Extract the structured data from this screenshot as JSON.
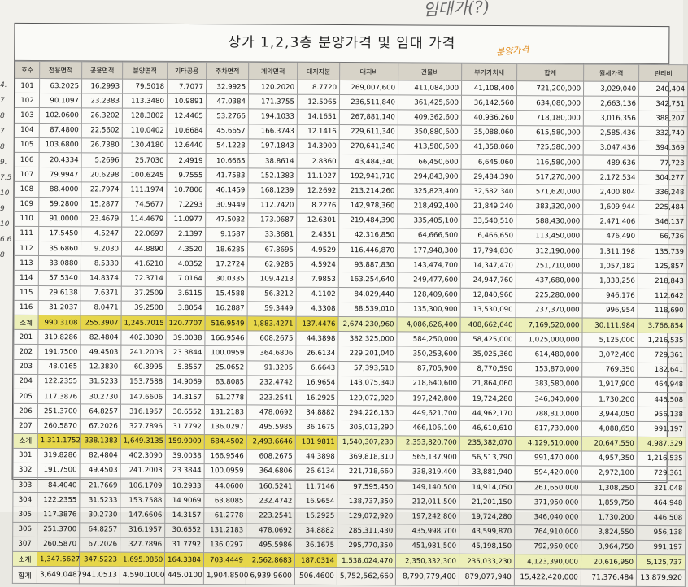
{
  "page_title": "상가 1,2,3층 분양가격 및 임대 가격",
  "header_note": "임대가(?)",
  "orange_note": "분양가격",
  "margin_notes": [
    "4.",
    "7",
    "8",
    "7",
    "8",
    "9.",
    "7.5",
    "10",
    "9",
    "10",
    "6.6",
    "8"
  ],
  "columns": [
    "호수",
    "전용면적",
    "공용면적",
    "분양면적",
    "기타공용",
    "주차면적",
    "계약면적",
    "대지지분",
    "대지비",
    "건물비",
    "부가가치세",
    "합계",
    "월세가격",
    "관리비"
  ],
  "rows": [
    [
      "101",
      "63.2025",
      "16.2993",
      "79.5018",
      "7.7077",
      "32.9925",
      "120.2020",
      "8.7720",
      "269,007,600",
      "411,084,000",
      "41,108,400",
      "721,200,000",
      "3,029,040",
      "240,404"
    ],
    [
      "102",
      "90.1097",
      "23.2383",
      "113.3480",
      "10.9891",
      "47.0384",
      "171.3755",
      "12.5065",
      "236,511,840",
      "361,425,600",
      "36,142,560",
      "634,080,000",
      "2,663,136",
      "342,751"
    ],
    [
      "103",
      "102.0600",
      "26.3202",
      "128.3802",
      "12.4465",
      "53.2766",
      "194.1033",
      "14.1651",
      "267,881,140",
      "409,362,600",
      "40,936,260",
      "718,180,000",
      "3,016,356",
      "388,207"
    ],
    [
      "104",
      "87.4800",
      "22.5602",
      "110.0402",
      "10.6684",
      "45.6657",
      "166.3743",
      "12.1416",
      "229,611,340",
      "350,880,600",
      "35,088,060",
      "615,580,000",
      "2,585,436",
      "332,749"
    ],
    [
      "105",
      "103.6800",
      "26.7380",
      "130.4180",
      "12.6440",
      "54.1223",
      "197.1843",
      "14.3900",
      "270,641,340",
      "413,580,600",
      "41,358,060",
      "725,580,000",
      "3,047,436",
      "394,369"
    ],
    [
      "106",
      "20.4334",
      "5.2696",
      "25.7030",
      "2.4919",
      "10.6665",
      "38.8614",
      "2.8360",
      "43,484,340",
      "66,450,600",
      "6,645,060",
      "116,580,000",
      "489,636",
      "77,723"
    ],
    [
      "107",
      "79.9947",
      "20.6298",
      "100.6245",
      "9.7555",
      "41.7583",
      "152.1383",
      "11.1027",
      "192,941,710",
      "294,843,900",
      "29,484,390",
      "517,270,000",
      "2,172,534",
      "304,277"
    ],
    [
      "108",
      "88.4000",
      "22.7974",
      "111.1974",
      "10.7806",
      "46.1459",
      "168.1239",
      "12.2692",
      "213,214,260",
      "325,823,400",
      "32,582,340",
      "571,620,000",
      "2,400,804",
      "336,248"
    ],
    [
      "109",
      "59.2800",
      "15.2877",
      "74.5677",
      "7.2293",
      "30.9449",
      "112.7420",
      "8.2276",
      "142,978,360",
      "218,492,400",
      "21,849,240",
      "383,320,000",
      "1,609,944",
      "225,484"
    ],
    [
      "110",
      "91.0000",
      "23.4679",
      "114.4679",
      "11.0977",
      "47.5032",
      "173.0687",
      "12.6301",
      "219,484,390",
      "335,405,100",
      "33,540,510",
      "588,430,000",
      "2,471,406",
      "346,137"
    ],
    [
      "111",
      "17.5450",
      "4.5247",
      "22.0697",
      "2.1397",
      "9.1587",
      "33.3681",
      "2.4351",
      "42,316,850",
      "64,666,500",
      "6,466,650",
      "113,450,000",
      "476,490",
      "66,736"
    ],
    [
      "112",
      "35.6860",
      "9.2030",
      "44.8890",
      "4.3520",
      "18.6285",
      "67.8695",
      "4.9529",
      "116,446,870",
      "177,948,300",
      "17,794,830",
      "312,190,000",
      "1,311,198",
      "135,739"
    ],
    [
      "113",
      "33.0880",
      "8.5330",
      "41.6210",
      "4.0352",
      "17.2724",
      "62.9285",
      "4.5924",
      "93,887,830",
      "143,474,700",
      "14,347,470",
      "251,710,000",
      "1,057,182",
      "125,857"
    ],
    [
      "114",
      "57.5340",
      "14.8374",
      "72.3714",
      "7.0164",
      "30.0335",
      "109.4213",
      "7.9853",
      "163,254,640",
      "249,477,600",
      "24,947,760",
      "437,680,000",
      "1,838,256",
      "218,843"
    ],
    [
      "115",
      "29.6138",
      "7.6371",
      "37.2509",
      "3.6115",
      "15.4588",
      "56.3212",
      "4.1102",
      "84,029,440",
      "128,409,600",
      "12,840,960",
      "225,280,000",
      "946,176",
      "112,642"
    ],
    [
      "116",
      "31.2037",
      "8.0471",
      "39.2508",
      "3.8054",
      "16.2887",
      "59.3449",
      "4.3308",
      "88,539,010",
      "135,300,900",
      "13,530,090",
      "237,370,000",
      "996,954",
      "118,690"
    ],
    [
      "소계",
      "990.3108",
      "255.3907",
      "1,245.7015",
      "120.7707",
      "516.9549",
      "1,883.4271",
      "137.4476",
      "2,674,230,960",
      "4,086,626,400",
      "408,662,640",
      "7,169,520,000",
      "30,111,984",
      "3,766,854"
    ],
    [
      "201",
      "319.8286",
      "82.4804",
      "402.3090",
      "39.0038",
      "166.9546",
      "608.2675",
      "44.3898",
      "382,325,000",
      "584,250,000",
      "58,425,000",
      "1,025,000,000",
      "5,125,000",
      "1,216,535"
    ],
    [
      "202",
      "191.7500",
      "49.4503",
      "241.2003",
      "23.3844",
      "100.0959",
      "364.6806",
      "26.6134",
      "229,201,040",
      "350,253,600",
      "35,025,360",
      "614,480,000",
      "3,072,400",
      "729,361"
    ],
    [
      "203",
      "48.0165",
      "12.3830",
      "60.3995",
      "5.8557",
      "25.0652",
      "91.3205",
      "6.6643",
      "57,393,510",
      "87,705,900",
      "8,770,590",
      "153,870,000",
      "769,350",
      "182,641"
    ],
    [
      "204",
      "122.2355",
      "31.5233",
      "153.7588",
      "14.9069",
      "63.8085",
      "232.4742",
      "16.9654",
      "143,075,340",
      "218,640,600",
      "21,864,060",
      "383,580,000",
      "1,917,900",
      "464,948"
    ],
    [
      "205",
      "117.3876",
      "30.2730",
      "147.6606",
      "14.3157",
      "61.2778",
      "223.2541",
      "16.2925",
      "129,072,920",
      "197,242,800",
      "19,724,280",
      "346,040,000",
      "1,730,200",
      "446,508"
    ],
    [
      "206",
      "251.3700",
      "64.8257",
      "316.1957",
      "30.6552",
      "131.2183",
      "478.0692",
      "34.8882",
      "294,226,130",
      "449,621,700",
      "44,962,170",
      "788,810,000",
      "3,944,050",
      "956,138"
    ],
    [
      "207",
      "260.5870",
      "67.2026",
      "327.7896",
      "31.7792",
      "136.0297",
      "495.5985",
      "36.1675",
      "305,013,290",
      "466,106,100",
      "46,610,610",
      "817,730,000",
      "4,088,650",
      "991,197"
    ],
    [
      "소계",
      "1,311.1752",
      "338.1383",
      "1,649.3135",
      "159.9009",
      "684.4502",
      "2,493.6646",
      "181.9811",
      "1,540,307,230",
      "2,353,820,700",
      "235,382,070",
      "4,129,510,000",
      "20,647,550",
      "4,987,329"
    ],
    [
      "301",
      "319.8286",
      "82.4804",
      "402.3090",
      "39.0038",
      "166.9546",
      "608.2675",
      "44.3898",
      "369,818,310",
      "565,137,900",
      "56,513,790",
      "991,470,000",
      "4,957,350",
      "1,216,535"
    ],
    [
      "302",
      "191.7500",
      "49.4503",
      "241.2003",
      "23.3844",
      "100.0959",
      "364.6806",
      "26.6134",
      "221,718,660",
      "338,819,400",
      "33,881,940",
      "594,420,000",
      "2,972,100",
      "729,361"
    ],
    [
      "303",
      "84.4040",
      "21.7669",
      "106.1709",
      "10.2933",
      "44.0600",
      "160.5241",
      "11.7146",
      "97,595,450",
      "149,140,500",
      "14,914,050",
      "261,650,000",
      "1,308,250",
      "321,048"
    ],
    [
      "304",
      "122.2355",
      "31.5233",
      "153.7588",
      "14.9069",
      "63.8085",
      "232.4742",
      "16.9654",
      "138,737,350",
      "212,011,500",
      "21,201,150",
      "371,950,000",
      "1,859,750",
      "464,948"
    ],
    [
      "305",
      "117.3876",
      "30.2730",
      "147.6606",
      "14.3157",
      "61.2778",
      "223.2541",
      "16.2925",
      "129,072,920",
      "197,242,800",
      "19,724,280",
      "346,040,000",
      "1,730,200",
      "446,508"
    ],
    [
      "306",
      "251.3700",
      "64.8257",
      "316.1957",
      "30.6552",
      "131.2183",
      "478.0692",
      "34.8882",
      "285,311,430",
      "435,998,700",
      "43,599,870",
      "764,910,000",
      "3,824,550",
      "956,138"
    ],
    [
      "307",
      "260.5870",
      "67.2026",
      "327.7896",
      "31.7792",
      "136.0297",
      "495.5986",
      "36.1675",
      "295,770,350",
      "451,981,500",
      "45,198,150",
      "792,950,000",
      "3,964,750",
      "991,197"
    ],
    [
      "소계",
      "1,347.5627",
      "347.5223",
      "1,695.0850",
      "164.3384",
      "703.4449",
      "2,562.8683",
      "187.0314",
      "1,538,024,470",
      "2,350,332,300",
      "235,033,230",
      "4,123,390,000",
      "20,616,950",
      "5,125,737"
    ]
  ],
  "total_row": [
    "합계",
    "3,649.0487",
    "941.0513",
    "4,590.1000",
    "445.0100",
    "1,904.8500",
    "6,939.9600",
    "506.4600",
    "5,752,562,660",
    "8,790,779,400",
    "879,077,940",
    "15,422,420,000",
    "71,376,484",
    "13,879,920"
  ]
}
